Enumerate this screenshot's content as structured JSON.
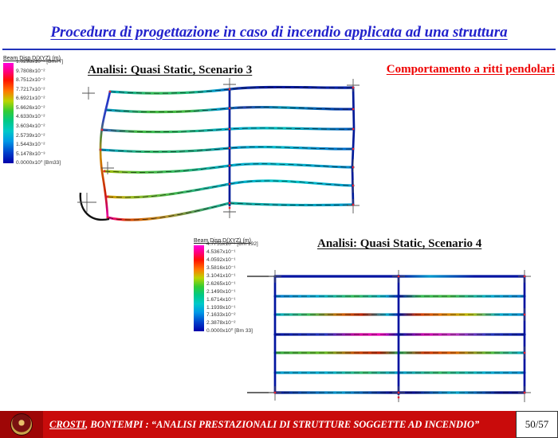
{
  "colors": {
    "title-blue": "#2222CC",
    "rule-blue": "#2233BB",
    "heading-red": "#EE0000",
    "footer-red": "#C90B0B"
  },
  "slide": {
    "title": "Procedura di progettazione in caso di incendio applicata ad una struttura"
  },
  "figures": {
    "scenario3": {
      "heading": "Analisi: Quasi Static, Scenario 3",
      "legend": {
        "title": "Beam Disp D(XYZ) (m)",
        "values": [
          "1.0298x10⁻¹  [Bm77]",
          "9.7808x10⁻²",
          "8.7512x10⁻²",
          "7.7217x10⁻²",
          "6.6921x10⁻²",
          "5.6626x10⁻²",
          "4.6330x10⁻²",
          "3.6034x10⁻²",
          "2.5739x10⁻²",
          "1.5443x10⁻²",
          "5.1478x10⁻³",
          "0.0000x10⁰  [Bm33]"
        ]
      }
    },
    "scenario4": {
      "heading": "Analisi: Quasi Static, Scenario 4",
      "legend": {
        "title": "Beam Disp D(XYZ) (m)",
        "values": [
          "4.7755x10⁻¹  [Bm 192]",
          "4.5367x10⁻¹",
          "4.0592x10⁻¹",
          "3.5816x10⁻¹",
          "3.1041x10⁻¹",
          "2.6265x10⁻¹",
          "2.1490x10⁻¹",
          "1.6714x10⁻¹",
          "1.1939x10⁻¹",
          "7.1633x10⁻²",
          "2.3878x10⁻²",
          "0.0000x10⁰  [Bm 33]"
        ]
      }
    }
  },
  "behavior_note": "Comportamento a ritti pendolari",
  "footer": {
    "author_underlined": "CROSTI",
    "rest": ", BONTEMPI : “ANALISI PRESTAZIONALI DI STRUTTURE SOGGETTE AD INCENDIO”",
    "page": "50/57"
  }
}
